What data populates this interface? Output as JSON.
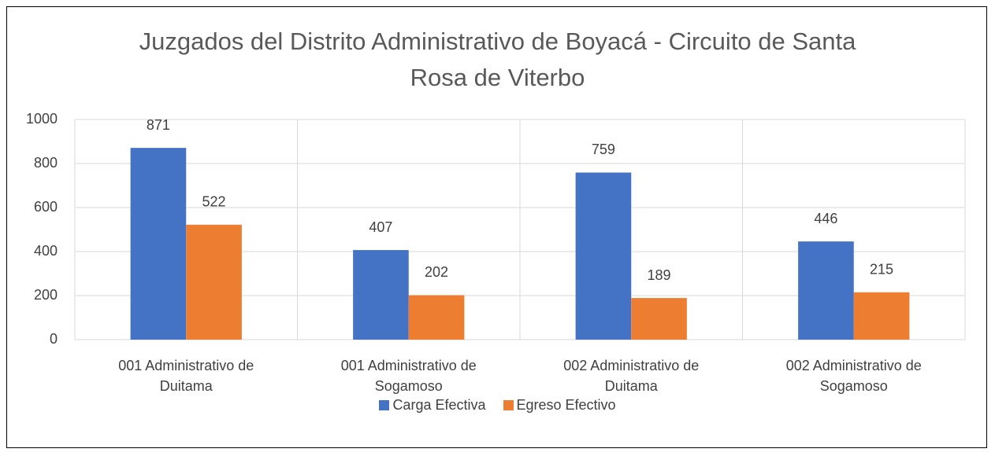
{
  "chart_data": {
    "type": "bar",
    "title": "Juzgados del Distrito Administrativo de Boyacá - Circuito de Santa Rosa de Viterbo",
    "categories": [
      "001 Administrativo de Duitama",
      "001 Administrativo de Sogamoso",
      "002 Administrativo de Duitama",
      "002 Administrativo de Sogamoso"
    ],
    "series": [
      {
        "name": "Carga Efectiva",
        "color": "#4472c4",
        "values": [
          871,
          407,
          759,
          446
        ]
      },
      {
        "name": "Egreso Efectivo",
        "color": "#ed7d31",
        "values": [
          522,
          202,
          189,
          215
        ]
      }
    ],
    "ylim": [
      0,
      1000
    ],
    "yticks": [
      0,
      200,
      400,
      600,
      800,
      1000
    ],
    "grid": true,
    "legend": "bottom"
  }
}
